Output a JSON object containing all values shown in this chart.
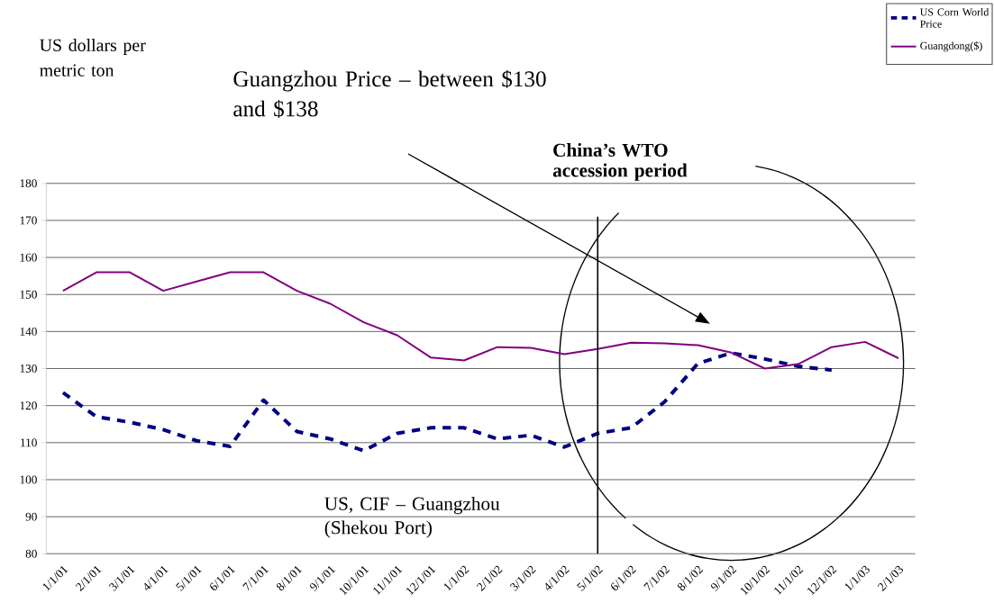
{
  "chart_data": {
    "type": "line",
    "categories": [
      "1/1/01",
      "2/1/01",
      "3/1/01",
      "4/1/01",
      "5/1/01",
      "6/1/01",
      "7/1/01",
      "8/1/01",
      "9/1/01",
      "10/1/01",
      "11/1/01",
      "12/1/01",
      "1/1/02",
      "2/1/02",
      "3/1/02",
      "4/1/02",
      "5/1/02",
      "6/1/02",
      "7/1/02",
      "8/1/02",
      "9/1/02",
      "10/1/02",
      "11/1/02",
      "12/1/02",
      "1/1/03",
      "2/1/03"
    ],
    "series": [
      {
        "name": "US Corn World Price",
        "color": "#000080",
        "line_style": "dashed",
        "values": [
          123.5,
          117,
          115.5,
          113.5,
          110.5,
          109,
          121.5,
          113,
          111,
          107.8,
          112.5,
          114,
          114,
          111,
          112,
          108.8,
          112.5,
          114,
          121,
          131.4,
          134.2,
          132.6,
          130.6,
          129.6,
          null,
          null
        ]
      },
      {
        "name": "Guangdong($)",
        "color": "#800080",
        "line_style": "solid",
        "values": [
          151,
          156,
          156,
          151,
          153.5,
          156,
          156,
          151,
          147.5,
          142.5,
          139,
          133,
          132.2,
          135.8,
          135.6,
          133.9,
          135.3,
          137,
          136.8,
          136.3,
          134.3,
          130,
          131.2,
          135.8,
          137.2,
          132.8
        ]
      }
    ],
    "ylim": [
      80,
      180
    ],
    "yticks": [
      80,
      90,
      100,
      110,
      120,
      130,
      140,
      150,
      160,
      170,
      180
    ],
    "grid": "y",
    "legend": "top right",
    "marker": "none",
    "ref_lines": [
      {
        "axis": "x",
        "value": "5/1/02",
        "label": "China’s WTO accession period"
      }
    ],
    "annotations": [
      "US dollars per metric ton",
      "Guangzhou Price – between $130 and $138",
      "US, CIF – Guangzhou (Shekou Port)"
    ]
  }
}
